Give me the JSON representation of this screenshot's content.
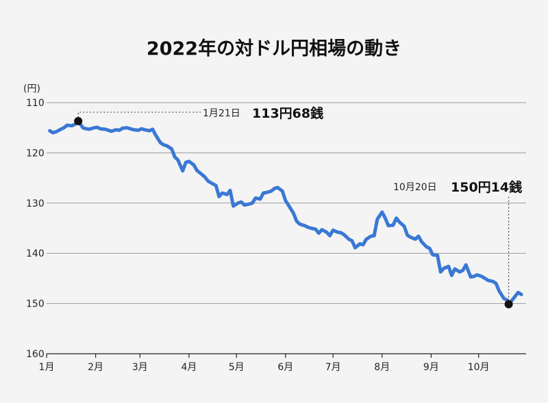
{
  "chart_data": {
    "type": "line",
    "title": "2022年の対ドル円相場の動き",
    "y_unit": "(円)",
    "ylim": [
      110,
      160
    ],
    "y_inverted": true,
    "y_ticks": [
      "110",
      "120",
      "130",
      "140",
      "150",
      "160"
    ],
    "x_ticks": [
      "1月",
      "2月",
      "3月",
      "4月",
      "5月",
      "6月",
      "7月",
      "8月",
      "9月",
      "10月"
    ],
    "grid": true,
    "colors": {
      "series": "#3a78d4",
      "marker": "#111111"
    },
    "series": [
      {
        "x": [
          "2022-01-03",
          "2022-01-05",
          "2022-01-07",
          "2022-01-10",
          "2022-01-12",
          "2022-01-14",
          "2022-01-17",
          "2022-01-19",
          "2022-01-21",
          "2022-01-24",
          "2022-01-26",
          "2022-01-28",
          "2022-01-31",
          "2022-02-02",
          "2022-02-04",
          "2022-02-07",
          "2022-02-09",
          "2022-02-11",
          "2022-02-14",
          "2022-02-16",
          "2022-02-18",
          "2022-02-21",
          "2022-02-23",
          "2022-02-25",
          "2022-02-28",
          "2022-03-02",
          "2022-03-04",
          "2022-03-07",
          "2022-03-09",
          "2022-03-11",
          "2022-03-14",
          "2022-03-16",
          "2022-03-18",
          "2022-03-21",
          "2022-03-23",
          "2022-03-25",
          "2022-03-28",
          "2022-03-30",
          "2022-04-01",
          "2022-04-04",
          "2022-04-06",
          "2022-04-08",
          "2022-04-11",
          "2022-04-13",
          "2022-04-15",
          "2022-04-18",
          "2022-04-20",
          "2022-04-22",
          "2022-04-25",
          "2022-04-27",
          "2022-04-29",
          "2022-05-02",
          "2022-05-04",
          "2022-05-06",
          "2022-05-09",
          "2022-05-11",
          "2022-05-13",
          "2022-05-16",
          "2022-05-18",
          "2022-05-20",
          "2022-05-23",
          "2022-05-25",
          "2022-05-27",
          "2022-05-30",
          "2022-06-01",
          "2022-06-03",
          "2022-06-06",
          "2022-06-08",
          "2022-06-10",
          "2022-06-13",
          "2022-06-15",
          "2022-06-17",
          "2022-06-20",
          "2022-06-22",
          "2022-06-24",
          "2022-06-27",
          "2022-06-29",
          "2022-07-01",
          "2022-07-04",
          "2022-07-06",
          "2022-07-08",
          "2022-07-11",
          "2022-07-13",
          "2022-07-15",
          "2022-07-18",
          "2022-07-20",
          "2022-07-22",
          "2022-07-25",
          "2022-07-27",
          "2022-07-29",
          "2022-08-01",
          "2022-08-03",
          "2022-08-05",
          "2022-08-08",
          "2022-08-10",
          "2022-08-12",
          "2022-08-15",
          "2022-08-17",
          "2022-08-19",
          "2022-08-22",
          "2022-08-24",
          "2022-08-26",
          "2022-08-29",
          "2022-08-31",
          "2022-09-02",
          "2022-09-05",
          "2022-09-07",
          "2022-09-09",
          "2022-09-12",
          "2022-09-14",
          "2022-09-16",
          "2022-09-19",
          "2022-09-21",
          "2022-09-23",
          "2022-09-26",
          "2022-09-28",
          "2022-09-30",
          "2022-10-03",
          "2022-10-05",
          "2022-10-07",
          "2022-10-10",
          "2022-10-12",
          "2022-10-14",
          "2022-10-17",
          "2022-10-19",
          "2022-10-20",
          "2022-10-21",
          "2022-10-24",
          "2022-10-26",
          "2022-10-28"
        ],
        "y": [
          115.6,
          116.0,
          115.8,
          115.3,
          115.0,
          114.5,
          114.6,
          114.3,
          113.68,
          115.0,
          115.2,
          115.3,
          115.0,
          114.9,
          115.2,
          115.3,
          115.5,
          115.7,
          115.4,
          115.5,
          115.1,
          115.0,
          115.2,
          115.4,
          115.5,
          115.2,
          115.4,
          115.6,
          115.3,
          116.5,
          118.0,
          118.4,
          118.6,
          119.2,
          120.8,
          121.4,
          123.6,
          121.9,
          121.7,
          122.4,
          123.5,
          124.0,
          124.8,
          125.6,
          126.0,
          126.5,
          128.7,
          128.0,
          128.3,
          127.5,
          130.6,
          130.0,
          129.8,
          130.4,
          130.2,
          130.0,
          129.0,
          129.2,
          128.0,
          127.9,
          127.6,
          127.1,
          126.9,
          127.6,
          129.5,
          130.5,
          132.0,
          133.6,
          134.2,
          134.5,
          134.8,
          135.0,
          135.2,
          136.0,
          135.3,
          135.8,
          136.5,
          135.4,
          135.8,
          135.9,
          136.3,
          137.2,
          137.5,
          138.9,
          138.1,
          138.3,
          137.2,
          136.6,
          136.5,
          133.2,
          131.8,
          133.0,
          134.5,
          134.4,
          133.0,
          133.8,
          134.6,
          136.4,
          136.8,
          137.2,
          136.6,
          137.7,
          138.7,
          139.0,
          140.3,
          140.4,
          143.7,
          143.0,
          142.6,
          144.4,
          143.1,
          143.7,
          143.4,
          142.3,
          144.7,
          144.6,
          144.3,
          144.6,
          145.0,
          145.4,
          145.6,
          146.0,
          147.5,
          149.0,
          149.3,
          150.14,
          149.8,
          148.6,
          147.8,
          148.2
        ]
      }
    ],
    "annotations": [
      {
        "date_label": "1月21日",
        "value_label": "113円68銭",
        "x": "2022-01-21",
        "y": 113.68
      },
      {
        "date_label": "10月20日",
        "value_label": "150円14銭",
        "x": "2022-10-20",
        "y": 150.14
      }
    ]
  }
}
